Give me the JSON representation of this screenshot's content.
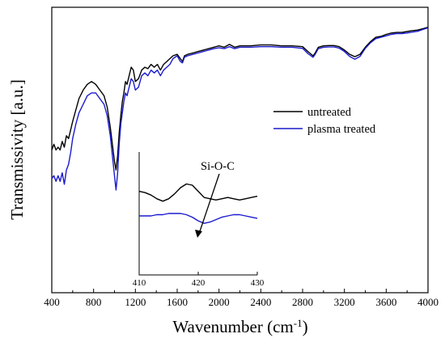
{
  "chart_data": [
    {
      "type": "line",
      "title": "",
      "xlabel": "Wavenumber (cm",
      "xlabel_sup": "-1",
      "xlabel_close": ")",
      "ylabel": "Transmissivity [a.u.]",
      "xlim": [
        400,
        4000
      ],
      "ylim": [
        0,
        1
      ],
      "y_ticks_shown": false,
      "grid": false,
      "x_ticks": [
        400,
        800,
        1200,
        1600,
        2000,
        2400,
        2800,
        3200,
        3600,
        4000
      ],
      "legend": {
        "placement": "right"
      },
      "colors": {
        "untreated": "#000000",
        "plasma_treated": "#1a1acd"
      },
      "series": [
        {
          "name": "untreated",
          "x": [
            400,
            420,
            440,
            460,
            480,
            500,
            520,
            540,
            560,
            580,
            600,
            630,
            660,
            700,
            740,
            780,
            820,
            860,
            900,
            930,
            960,
            980,
            1000,
            1015,
            1030,
            1045,
            1060,
            1075,
            1090,
            1105,
            1120,
            1140,
            1160,
            1180,
            1200,
            1230,
            1260,
            1290,
            1320,
            1350,
            1380,
            1410,
            1440,
            1470,
            1500,
            1530,
            1560,
            1600,
            1630,
            1650,
            1670,
            1700,
            1750,
            1800,
            1850,
            1900,
            1950,
            2000,
            2050,
            2100,
            2150,
            2200,
            2250,
            2300,
            2400,
            2500,
            2600,
            2700,
            2800,
            2850,
            2900,
            2920,
            2950,
            3000,
            3050,
            3100,
            3150,
            3200,
            3250,
            3300,
            3350,
            3400,
            3450,
            3500,
            3550,
            3600,
            3650,
            3700,
            3750,
            3800,
            3850,
            3900,
            3950,
            4000
          ],
          "y": [
            0.5,
            0.52,
            0.5,
            0.51,
            0.5,
            0.53,
            0.51,
            0.55,
            0.54,
            0.57,
            0.6,
            0.64,
            0.68,
            0.71,
            0.73,
            0.74,
            0.73,
            0.71,
            0.69,
            0.65,
            0.58,
            0.52,
            0.46,
            0.43,
            0.48,
            0.56,
            0.62,
            0.67,
            0.7,
            0.74,
            0.73,
            0.76,
            0.79,
            0.78,
            0.74,
            0.75,
            0.78,
            0.79,
            0.785,
            0.8,
            0.79,
            0.8,
            0.78,
            0.8,
            0.81,
            0.82,
            0.83,
            0.835,
            0.82,
            0.81,
            0.83,
            0.835,
            0.84,
            0.845,
            0.85,
            0.855,
            0.86,
            0.865,
            0.86,
            0.87,
            0.86,
            0.865,
            0.865,
            0.865,
            0.868,
            0.868,
            0.865,
            0.865,
            0.862,
            0.845,
            0.83,
            0.84,
            0.86,
            0.865,
            0.866,
            0.866,
            0.862,
            0.85,
            0.835,
            0.827,
            0.835,
            0.86,
            0.88,
            0.895,
            0.898,
            0.905,
            0.91,
            0.912,
            0.912,
            0.915,
            0.918,
            0.92,
            0.925,
            0.93
          ]
        },
        {
          "name": "plasma treated",
          "x": [
            400,
            420,
            440,
            460,
            480,
            500,
            520,
            540,
            560,
            580,
            600,
            630,
            660,
            700,
            740,
            780,
            820,
            860,
            900,
            930,
            960,
            980,
            1000,
            1015,
            1030,
            1045,
            1060,
            1075,
            1090,
            1105,
            1120,
            1140,
            1160,
            1180,
            1200,
            1230,
            1260,
            1290,
            1320,
            1350,
            1380,
            1410,
            1440,
            1470,
            1500,
            1530,
            1560,
            1600,
            1630,
            1650,
            1670,
            1700,
            1750,
            1800,
            1850,
            1900,
            1950,
            2000,
            2050,
            2100,
            2150,
            2200,
            2250,
            2300,
            2400,
            2500,
            2600,
            2700,
            2800,
            2850,
            2900,
            2920,
            2950,
            3000,
            3050,
            3100,
            3150,
            3200,
            3250,
            3300,
            3350,
            3400,
            3450,
            3500,
            3550,
            3600,
            3650,
            3700,
            3750,
            3800,
            3850,
            3900,
            3950,
            4000
          ],
          "y": [
            0.4,
            0.41,
            0.39,
            0.41,
            0.39,
            0.42,
            0.38,
            0.43,
            0.45,
            0.49,
            0.54,
            0.59,
            0.63,
            0.66,
            0.69,
            0.7,
            0.7,
            0.68,
            0.66,
            0.62,
            0.55,
            0.48,
            0.41,
            0.36,
            0.42,
            0.52,
            0.59,
            0.63,
            0.67,
            0.7,
            0.69,
            0.72,
            0.75,
            0.74,
            0.71,
            0.72,
            0.76,
            0.77,
            0.76,
            0.78,
            0.77,
            0.78,
            0.76,
            0.78,
            0.79,
            0.8,
            0.82,
            0.83,
            0.81,
            0.805,
            0.825,
            0.83,
            0.835,
            0.84,
            0.845,
            0.85,
            0.855,
            0.858,
            0.855,
            0.862,
            0.855,
            0.86,
            0.86,
            0.86,
            0.862,
            0.862,
            0.86,
            0.86,
            0.856,
            0.838,
            0.825,
            0.835,
            0.855,
            0.86,
            0.861,
            0.861,
            0.857,
            0.845,
            0.828,
            0.818,
            0.828,
            0.856,
            0.876,
            0.89,
            0.895,
            0.9,
            0.905,
            0.908,
            0.908,
            0.91,
            0.913,
            0.916,
            0.922,
            0.928
          ]
        }
      ]
    },
    {
      "type": "line",
      "title": "",
      "annotation": "Si-O-C",
      "xlim": [
        410,
        430
      ],
      "ylim": [
        0,
        1
      ],
      "grid": false,
      "x_ticks": [
        410,
        420,
        430
      ],
      "series": [
        {
          "name": "untreated",
          "x": [
            410,
            411,
            412,
            413,
            414,
            415,
            416,
            417,
            418,
            419,
            420,
            421,
            422,
            423,
            424,
            425,
            426,
            427,
            428,
            429,
            430
          ],
          "y": [
            0.68,
            0.67,
            0.65,
            0.62,
            0.6,
            0.62,
            0.66,
            0.71,
            0.74,
            0.73,
            0.68,
            0.63,
            0.62,
            0.61,
            0.62,
            0.63,
            0.62,
            0.61,
            0.62,
            0.63,
            0.64
          ]
        },
        {
          "name": "plasma treated",
          "x": [
            410,
            411,
            412,
            413,
            414,
            415,
            416,
            417,
            418,
            419,
            420,
            421,
            422,
            423,
            424,
            425,
            426,
            427,
            428,
            429,
            430
          ],
          "y": [
            0.48,
            0.48,
            0.48,
            0.49,
            0.49,
            0.5,
            0.5,
            0.5,
            0.49,
            0.47,
            0.44,
            0.42,
            0.43,
            0.45,
            0.47,
            0.48,
            0.49,
            0.49,
            0.48,
            0.47,
            0.46
          ]
        }
      ]
    }
  ]
}
